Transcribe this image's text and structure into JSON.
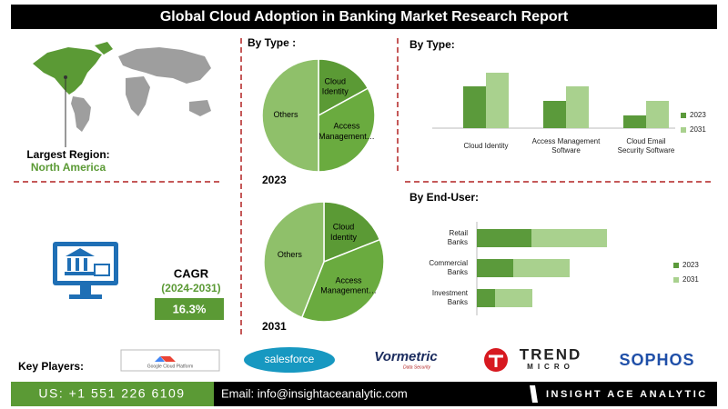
{
  "header": {
    "title": "Global Cloud Adoption in Banking Market  Research Report"
  },
  "region": {
    "label": "Largest Region:",
    "value": "North America"
  },
  "cagr": {
    "label": "CAGR",
    "period": "(2024-2031)",
    "value": "16.3%"
  },
  "key_players": {
    "label": "Key Players:",
    "logos": [
      "Google Cloud Platform",
      "salesforce",
      "Vormetric",
      "Data Security",
      "TREND",
      "MICRO",
      "SOPHOS"
    ]
  },
  "footer": {
    "phone": "US: +1 551 226 6109",
    "email": "Email: info@insightaceanalytic.com",
    "brand": "INSIGHT ACE ANALYTIC"
  },
  "chart_data": [
    {
      "type": "pie",
      "title": "By Type :",
      "caption": "2023",
      "categories": [
        "Cloud Identity",
        "Access Management…",
        "Others"
      ],
      "values": [
        17,
        33,
        50
      ],
      "colors": [
        "#5b9a35",
        "#6aab3f",
        "#8fc06a"
      ]
    },
    {
      "type": "pie",
      "caption": "2031",
      "categories": [
        "Cloud Identity",
        "Access Management…",
        "Others"
      ],
      "values": [
        19,
        37,
        44
      ],
      "colors": [
        "#5b9a35",
        "#6aab3f",
        "#8fc06a"
      ]
    },
    {
      "type": "bar",
      "orientation": "vertical",
      "stacked": false,
      "title": "By  Type:",
      "categories": [
        "Cloud Identity",
        "Access Management Software",
        "Cloud Email Security Software"
      ],
      "series": [
        {
          "name": "2023",
          "color": "#5b9a3b",
          "values": [
            46,
            30,
            14
          ]
        },
        {
          "name": "2031",
          "color": "#a9d18e",
          "values": [
            61,
            46,
            30
          ]
        }
      ],
      "ylim": [
        0,
        70
      ],
      "legend": "right"
    },
    {
      "type": "bar",
      "orientation": "horizontal",
      "stacked": true,
      "title": "By End-User:",
      "categories": [
        "Retail Banks",
        "Commercial Banks",
        "Investment Banks"
      ],
      "series": [
        {
          "name": "2023",
          "color": "#5b9a3b",
          "values": [
            60,
            40,
            20
          ]
        },
        {
          "name": "2031",
          "color": "#a9d18e",
          "values": [
            83,
            62,
            41
          ]
        }
      ],
      "xlim": [
        0,
        150
      ],
      "legend": "right"
    }
  ]
}
